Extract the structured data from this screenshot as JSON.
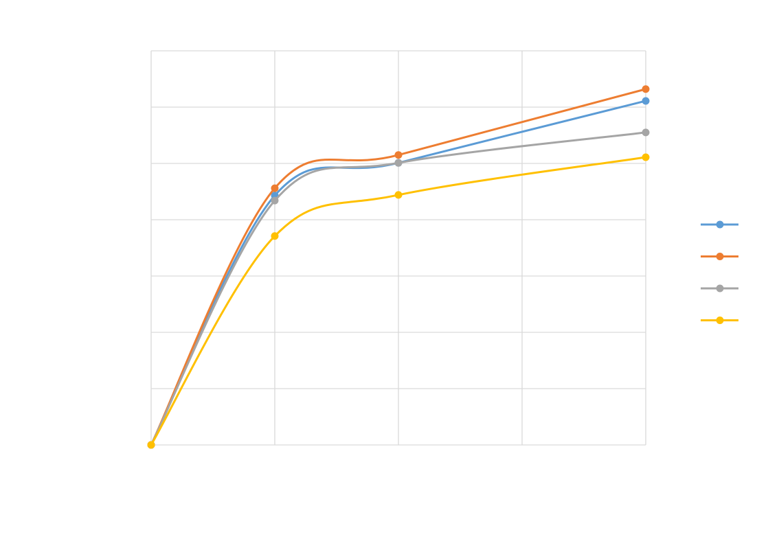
{
  "chart_data": {
    "type": "line",
    "smooth": true,
    "grid": true,
    "legend": "right",
    "x": [
      0,
      1,
      2,
      4
    ],
    "xlim": [
      0,
      4
    ],
    "xticks": [
      0,
      1,
      2,
      3,
      4
    ],
    "ylim": [
      0,
      7
    ],
    "yticks": [
      0,
      1,
      2,
      3,
      4,
      5,
      6,
      7
    ],
    "series": [
      {
        "color": "#5b9bd5",
        "values": [
          0,
          4.43,
          5.01,
          6.11
        ]
      },
      {
        "color": "#ed7d31",
        "values": [
          0,
          4.56,
          5.15,
          6.32
        ]
      },
      {
        "color": "#a5a5a5",
        "values": [
          0,
          4.34,
          5.01,
          5.55
        ]
      },
      {
        "color": "#ffc000",
        "values": [
          0,
          3.71,
          4.44,
          5.11
        ]
      }
    ]
  }
}
